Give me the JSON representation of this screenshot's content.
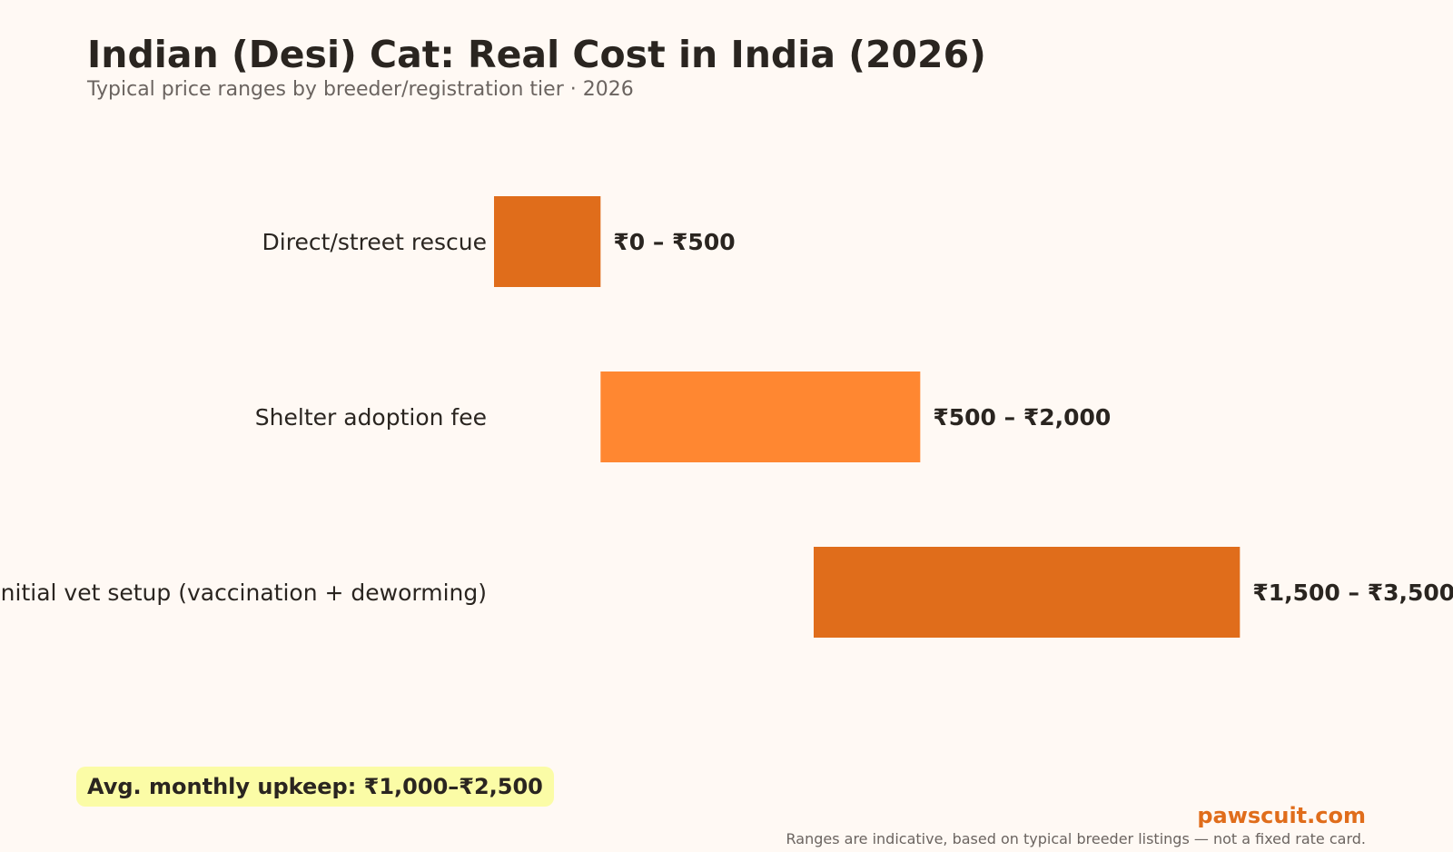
{
  "header": {
    "title": "Indian (Desi) Cat: Real Cost in India (2026)",
    "subtitle": "Typical price ranges by breeder/registration tier · 2026"
  },
  "chart_data": {
    "type": "bar",
    "orientation": "horizontal",
    "style": "floating-range",
    "categories": [
      "Direct/street rescue",
      "Shelter adoption fee",
      "Initial vet setup (vaccination + deworming)"
    ],
    "ranges": [
      [
        0,
        500
      ],
      [
        500,
        2000
      ],
      [
        1500,
        3500
      ]
    ],
    "value_labels": [
      "₹0 – ₹500",
      "₹500 – ₹2,000",
      "₹1,500 – ₹3,500"
    ],
    "colors": [
      "#e06d1b",
      "#ff8731",
      "#e06d1b"
    ],
    "xlim": [
      0,
      4500
    ],
    "grid": false,
    "axes_visible": false,
    "legend": "none"
  },
  "annotations": {
    "upkeep_badge": "Avg. monthly upkeep: ₹1,000–₹2,500",
    "brand": "pawscuit.com",
    "footnote": "Ranges are indicative, based on typical breeder listings — not a fixed rate card."
  },
  "colors": {
    "background": "#fff9f4",
    "accent": "#e06d1b",
    "accent_light": "#ff8731",
    "badge_bg": "#fbfca6",
    "text": "#2a2520",
    "muted": "#6b6460"
  }
}
